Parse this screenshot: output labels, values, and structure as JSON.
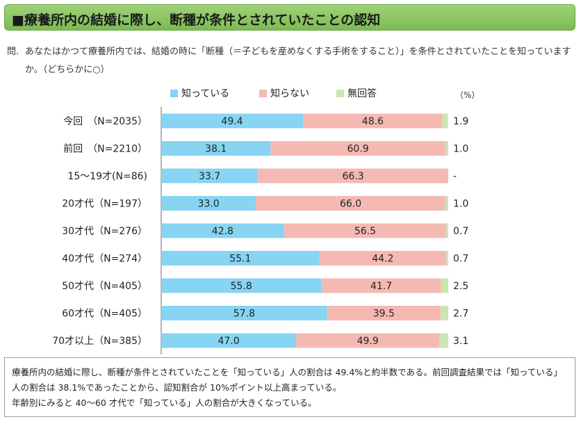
{
  "title": "■療養所内の結婚に際し、断種が条件とされていたことの認知",
  "question": {
    "mark": "問.",
    "text": "あなたはかつて療養所内では、結婚の時に「断種（＝子どもを産めなくする手術をすること）」を条件とされていたことを知っていますか。（どちらかに○）"
  },
  "unit_label": "（%）",
  "colors": {
    "knows": "#87d4f3",
    "not_know": "#f5b9b4",
    "no_answer": "#cbe6b0"
  },
  "chart_data": {
    "type": "bar",
    "orientation": "horizontal",
    "stacked": true,
    "percent": true,
    "categories": [
      "今回　（N=2035）",
      "前回　（N=2210）",
      "15～19才(N=86)",
      "20才代（N=197）",
      "30才代（N=276）",
      "40才代（N=274）",
      "50才代（N=405）",
      "60才代（N=405）",
      "70才以上（N=385）"
    ],
    "series": [
      {
        "name": "知っている",
        "values": [
          49.4,
          38.1,
          33.7,
          33.0,
          42.8,
          55.1,
          55.8,
          57.8,
          47.0
        ]
      },
      {
        "name": "知らない",
        "values": [
          48.6,
          60.9,
          66.3,
          66.0,
          56.5,
          44.2,
          41.7,
          39.5,
          49.9
        ]
      },
      {
        "name": "無回答",
        "values": [
          1.9,
          1.0,
          0,
          1.0,
          0.7,
          0.7,
          2.5,
          2.7,
          3.1
        ]
      }
    ],
    "no_answer_labels": [
      "1.9",
      "1.0",
      "-",
      "1.0",
      "0.7",
      "0.7",
      "2.5",
      "2.7",
      "3.1"
    ],
    "legend_position": "top"
  },
  "summary": [
    "療養所内の結婚に際し、断種が条件とされていたことを「知っている」人の割合は 49.4%と約半数である。前回調査結果では「知っている」人の割合は 38.1%であったことから、認知割合が 10%ポイント以上高まっている。",
    "年齢別にみると 40～60 才代で「知っている」人の割合が大きくなっている。"
  ]
}
